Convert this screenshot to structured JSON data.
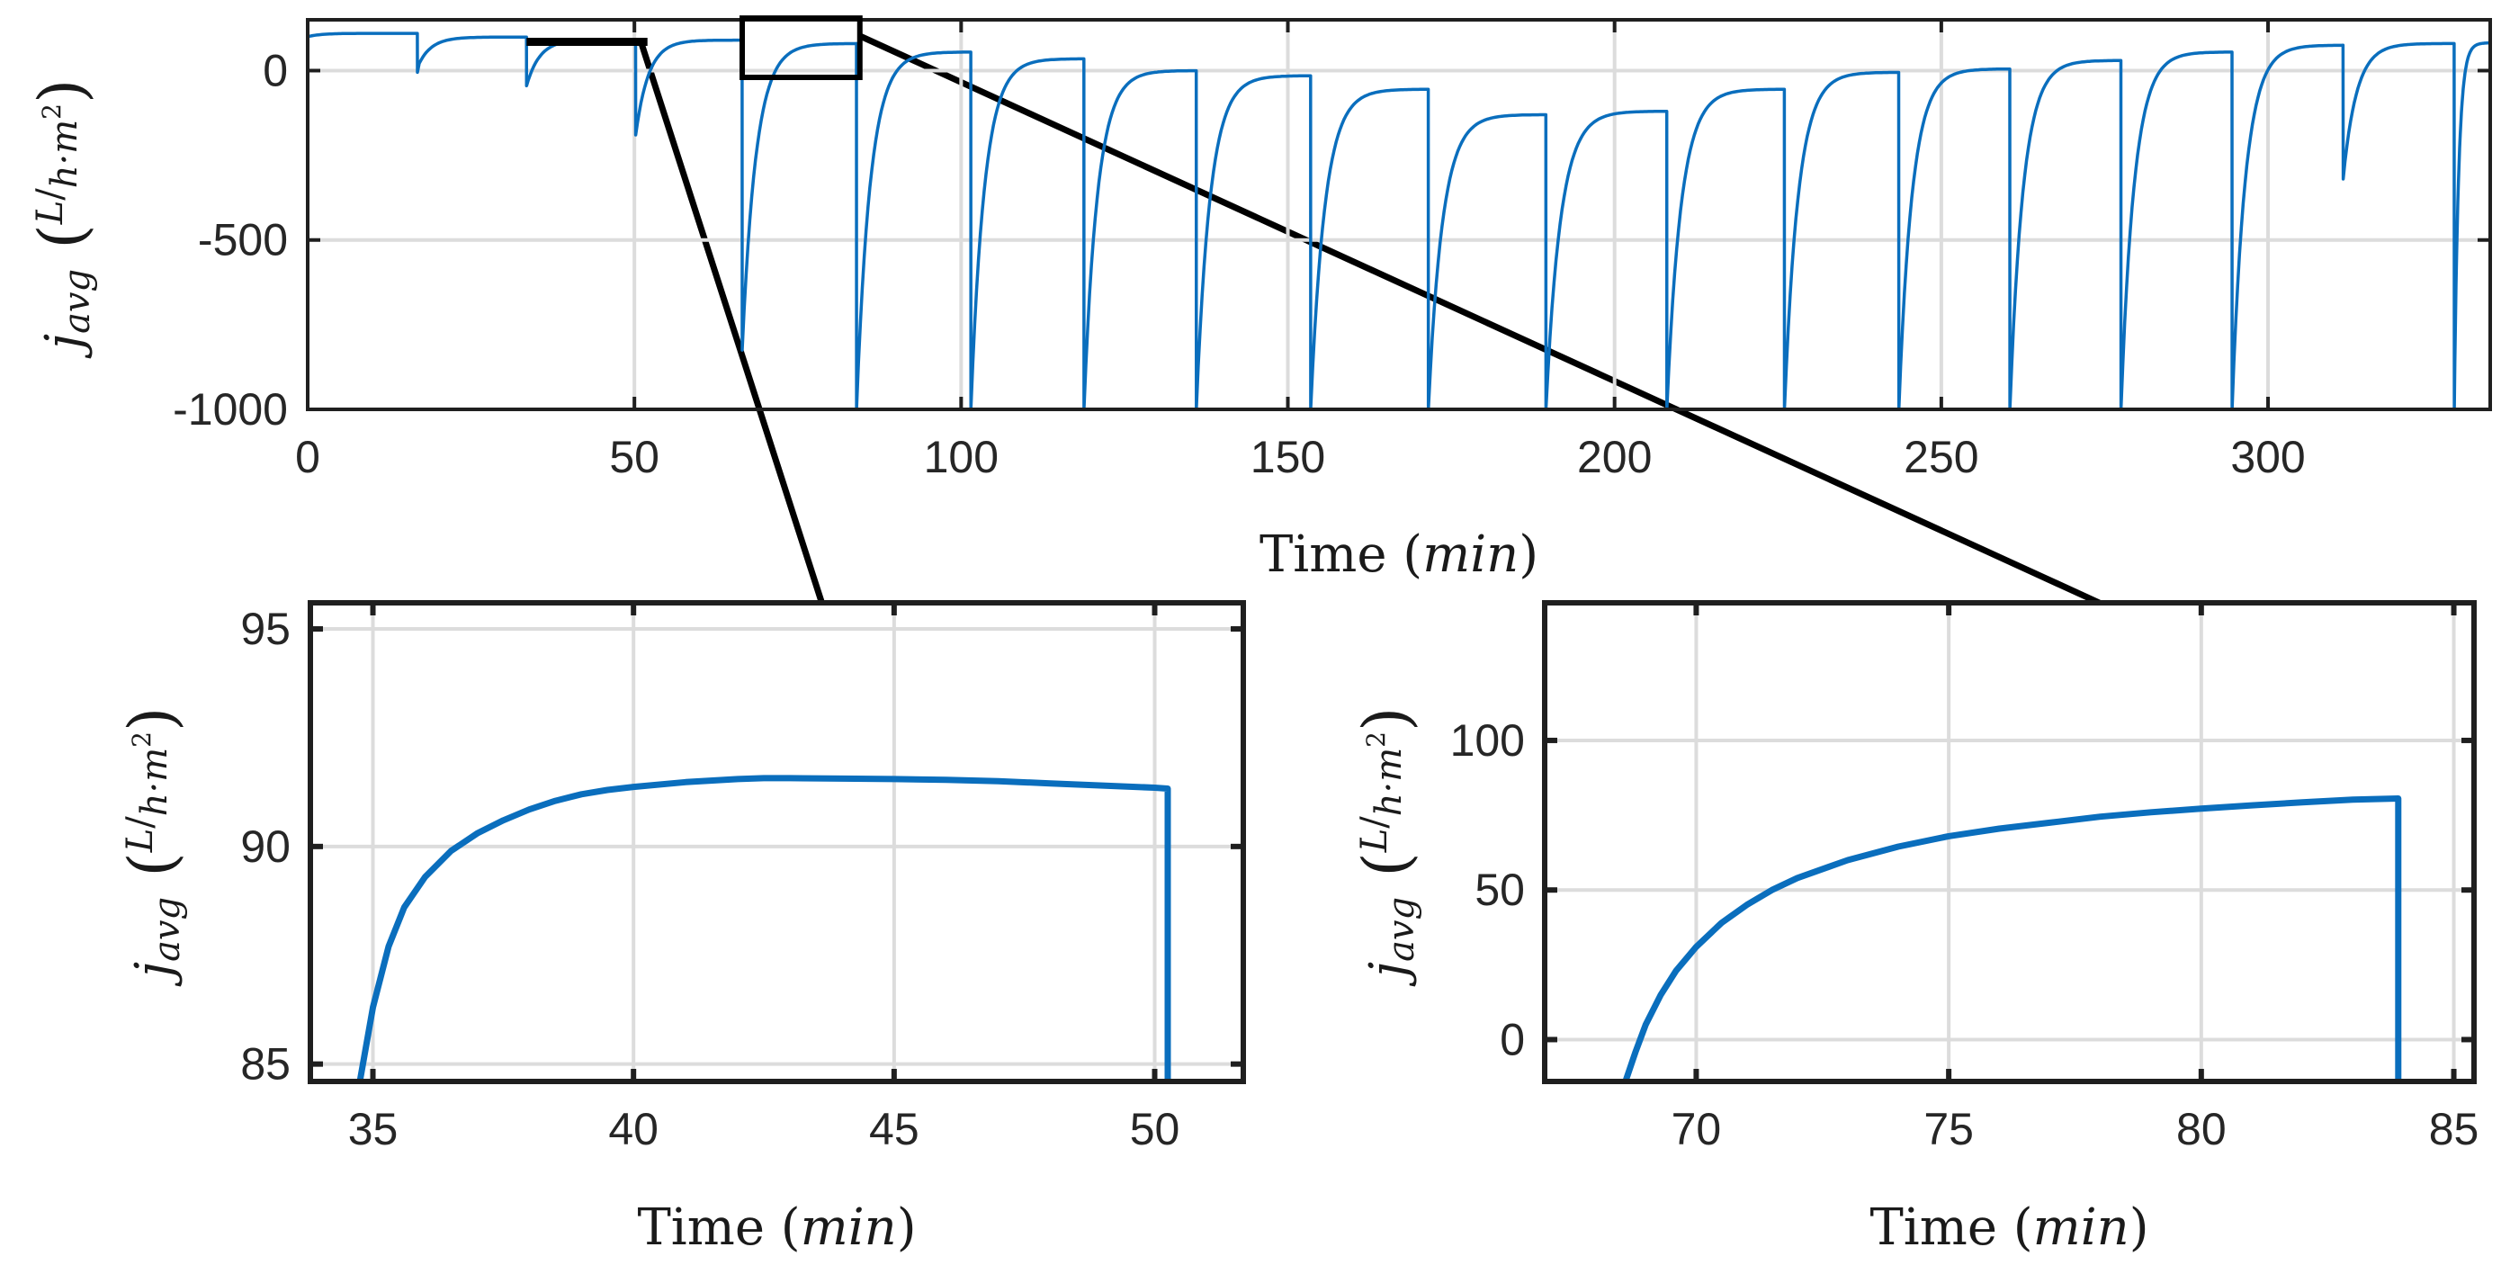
{
  "colors": {
    "series": "#0a6ebd",
    "axis": "#1f1f1f",
    "grid": "#dcdcdc",
    "text": "#262626"
  },
  "chart_data": [
    {
      "id": "main",
      "type": "line",
      "title": "",
      "xlabel": "Time",
      "xlabel_unit": "min",
      "ylabel": "j",
      "ylabel_sub": "avg",
      "ylabel_frac_num": "L",
      "ylabel_frac_den": "h·m",
      "ylabel_frac_exp": "2",
      "xlim": [
        0,
        334
      ],
      "ylim": [
        -1000,
        150
      ],
      "xticks": [
        0,
        50,
        100,
        150,
        200,
        250,
        300
      ],
      "xtick_labels": [
        "0",
        "50",
        "100",
        "150",
        "200",
        "250",
        "300"
      ],
      "yticks": [
        0,
        -500,
        -1000
      ],
      "ytick_labels": [
        "0",
        "-500",
        "-1000"
      ],
      "grid": true,
      "cycles": [
        {
          "start": 0,
          "end": 16.8,
          "low": 100,
          "high": 110,
          "dip": 100
        },
        {
          "start": 16.8,
          "end": 33.5,
          "low": 10,
          "high": 99,
          "dip": -5
        },
        {
          "start": 33.5,
          "end": 50.2,
          "low": -45,
          "high": 91.6,
          "dip": -45
        },
        {
          "start": 50.2,
          "end": 66.5,
          "low": -190,
          "high": 90,
          "dip": -190
        },
        {
          "start": 66.5,
          "end": 84,
          "low": -825,
          "high": 80,
          "dip": -825
        },
        {
          "start": 84,
          "end": 101.5,
          "low": -1000,
          "high": 55,
          "dip": -1000
        },
        {
          "start": 101.5,
          "end": 118.8,
          "low": -1000,
          "high": 35,
          "dip": -1000
        },
        {
          "start": 118.8,
          "end": 136,
          "low": -1000,
          "high": 0,
          "dip": -1000
        },
        {
          "start": 136,
          "end": 153.5,
          "low": -1000,
          "high": -15,
          "dip": -1000
        },
        {
          "start": 153.5,
          "end": 171.5,
          "low": -1000,
          "high": -55,
          "dip": -1000
        },
        {
          "start": 171.5,
          "end": 189.5,
          "low": -1000,
          "high": -130,
          "dip": -1000
        },
        {
          "start": 189.5,
          "end": 208,
          "low": -1000,
          "high": -120,
          "dip": -1000
        },
        {
          "start": 208,
          "end": 226,
          "low": -1000,
          "high": -55,
          "dip": -1000
        },
        {
          "start": 226,
          "end": 243.5,
          "low": -1000,
          "high": -5,
          "dip": -1000
        },
        {
          "start": 243.5,
          "end": 260.5,
          "low": -1000,
          "high": 5,
          "dip": -1000
        },
        {
          "start": 260.5,
          "end": 277.5,
          "low": -1000,
          "high": 30,
          "dip": -1000
        },
        {
          "start": 277.5,
          "end": 294.5,
          "low": -1000,
          "high": 55,
          "dip": -1000
        },
        {
          "start": 294.5,
          "end": 311.5,
          "low": -1000,
          "high": 75,
          "dip": -1000
        },
        {
          "start": 311.5,
          "end": 328.5,
          "low": -320,
          "high": 80,
          "dip": -320
        },
        {
          "start": 328.5,
          "end": 334,
          "low": -1000,
          "high": 82,
          "dip": -1000
        }
      ]
    },
    {
      "id": "zoom-left",
      "type": "line",
      "xlabel": "Time",
      "xlabel_unit": "min",
      "ylabel": "j",
      "ylabel_sub": "avg",
      "ylabel_frac_num": "L",
      "ylabel_frac_den": "h·m",
      "ylabel_frac_exp": "2",
      "xlim": [
        33.8,
        51.7
      ],
      "ylim": [
        84.6,
        95.6
      ],
      "xticks": [
        35,
        40,
        45,
        50
      ],
      "xtick_labels": [
        "35",
        "40",
        "45",
        "50"
      ],
      "yticks": [
        85,
        90,
        95
      ],
      "ytick_labels": [
        "85",
        "90",
        "95"
      ],
      "grid": true,
      "x": [
        34.75,
        35.0,
        35.3,
        35.6,
        36.0,
        36.5,
        37.0,
        37.5,
        38.0,
        38.5,
        39.0,
        39.5,
        40.0,
        41.0,
        42.0,
        42.5,
        43.0,
        44.0,
        45.0,
        46.0,
        47.0,
        48.0,
        49.0,
        50.0,
        50.25,
        50.25
      ],
      "y": [
        84.6,
        86.3,
        87.7,
        88.6,
        89.3,
        89.9,
        90.3,
        90.6,
        90.85,
        91.05,
        91.2,
        91.3,
        91.37,
        91.48,
        91.55,
        91.57,
        91.57,
        91.56,
        91.55,
        91.53,
        91.5,
        91.45,
        91.4,
        91.35,
        91.33,
        84.6
      ]
    },
    {
      "id": "zoom-right",
      "type": "line",
      "xlabel": "Time",
      "xlabel_unit": "min",
      "ylabel": "j",
      "ylabel_sub": "avg",
      "ylabel_frac_num": "L",
      "ylabel_frac_den": "h·m",
      "ylabel_frac_exp": "2",
      "xlim": [
        67,
        85.4
      ],
      "ylim": [
        -14,
        146
      ],
      "xticks": [
        70,
        75,
        80,
        85
      ],
      "xtick_labels": [
        "70",
        "75",
        "80",
        "85"
      ],
      "yticks": [
        0,
        50,
        100
      ],
      "ytick_labels": [
        "0",
        "50",
        "100"
      ],
      "grid": true,
      "x": [
        68.6,
        68.8,
        69.0,
        69.3,
        69.6,
        70.0,
        70.5,
        71.0,
        71.5,
        72.0,
        73.0,
        74.0,
        75.0,
        76.0,
        77.0,
        78.0,
        79.0,
        80.0,
        81.0,
        82.0,
        83.0,
        83.9,
        83.9
      ],
      "y": [
        -14,
        -4,
        5,
        15,
        23,
        31,
        39,
        45,
        50,
        54,
        60,
        64.5,
        68,
        70.5,
        72.5,
        74.5,
        76,
        77.2,
        78.3,
        79.3,
        80.2,
        80.6,
        -14
      ]
    }
  ],
  "zoom_boxes": {
    "left_segment": {
      "x": [
        33.5,
        52
      ],
      "y": 85
    },
    "right_box": {
      "x": [
        66.5,
        84.5
      ],
      "y": [
        -20,
        155
      ]
    }
  }
}
